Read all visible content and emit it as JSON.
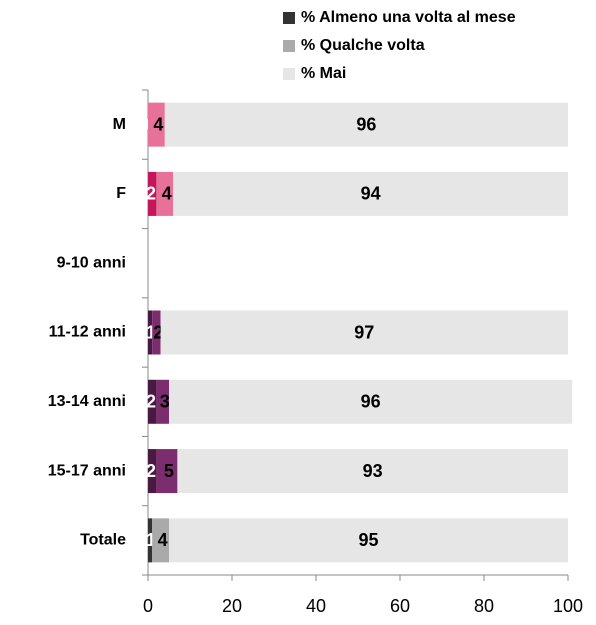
{
  "chart_data": {
    "type": "stacked-barh",
    "categories": [
      "M",
      "F",
      "9-10 anni",
      "11-12 anni",
      "13-14 anni",
      "15-17 anni",
      "Totale"
    ],
    "series": [
      {
        "name": "% Almeno una volta al mese",
        "color": "#333333",
        "values": [
          0,
          2,
          null,
          1,
          2,
          2,
          1
        ],
        "colors": [
          "#c2185b",
          "#c2185b",
          null,
          "#4a1942",
          "#4a1942",
          "#4a1942",
          "#333333"
        ]
      },
      {
        "name": "% Qualche volta",
        "color": "#aaaaaa",
        "values": [
          4,
          4,
          null,
          2,
          3,
          5,
          4
        ],
        "colors": [
          "#e8719a",
          "#e8719a",
          null,
          "#7b2d6e",
          "#7b2d6e",
          "#7b2d6e",
          "#aaaaaa"
        ]
      },
      {
        "name": "% Mai",
        "color": "#e6e6e6",
        "values": [
          96,
          94,
          null,
          97,
          96,
          93,
          95
        ],
        "colors": [
          "#e6e6e6",
          "#e6e6e6",
          null,
          "#e6e6e6",
          "#e6e6e6",
          "#e6e6e6",
          "#e6e6e6"
        ]
      }
    ],
    "xlim": [
      0,
      100
    ],
    "xticks": [
      0,
      20,
      40,
      60,
      80,
      100
    ],
    "legend": "top"
  }
}
